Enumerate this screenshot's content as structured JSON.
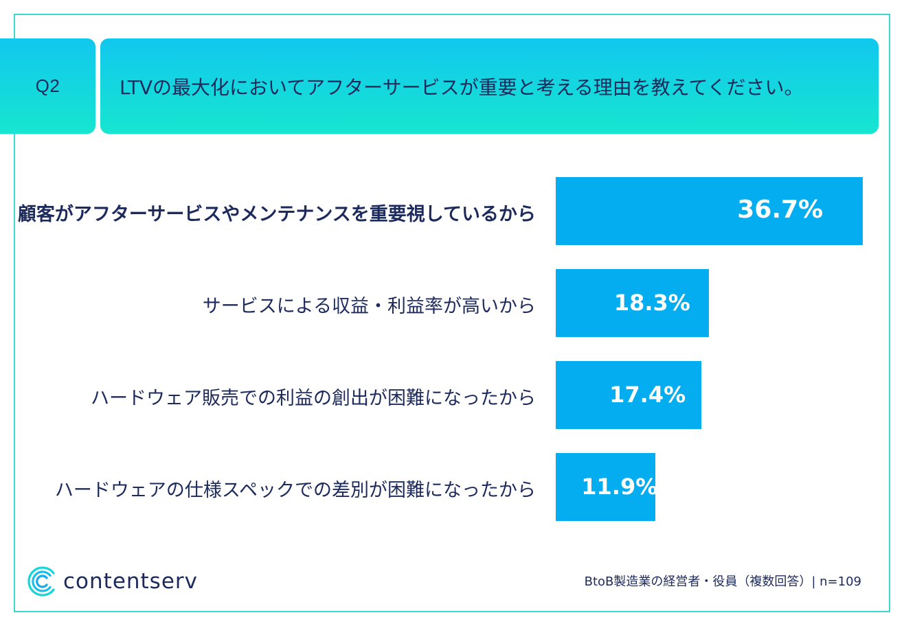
{
  "question": {
    "label": "Q2",
    "text": "LTVの最大化においてアフターサービスが重要と考える理由を教えてください。"
  },
  "colors": {
    "bar": "#04adef",
    "header_gradient_top": "#11c7ee",
    "header_gradient_bottom": "#17e6d0",
    "text": "#1d2a5c",
    "frame": "#3fd8cf"
  },
  "chart_data": {
    "type": "bar",
    "orientation": "horizontal",
    "categories": [
      "顧客がアフターサービスやメンテナンスを重要視しているから",
      "サービスによる収益・利益率が高いから",
      "ハードウェア販売での利益の創出が困難になったから",
      "ハードウェアの仕様スペックでの差別が困難になったから"
    ],
    "values": [
      36.7,
      18.3,
      17.4,
      11.9
    ],
    "value_labels": [
      "36.7%",
      "18.3%",
      "17.4%",
      "11.9%"
    ],
    "highlight_index": 0
  },
  "footer": {
    "brand": "contentserv",
    "brand_icon": "contentserv-logo-icon",
    "note": "BtoB製造業の経営者・役員（複数回答）| n=109"
  }
}
